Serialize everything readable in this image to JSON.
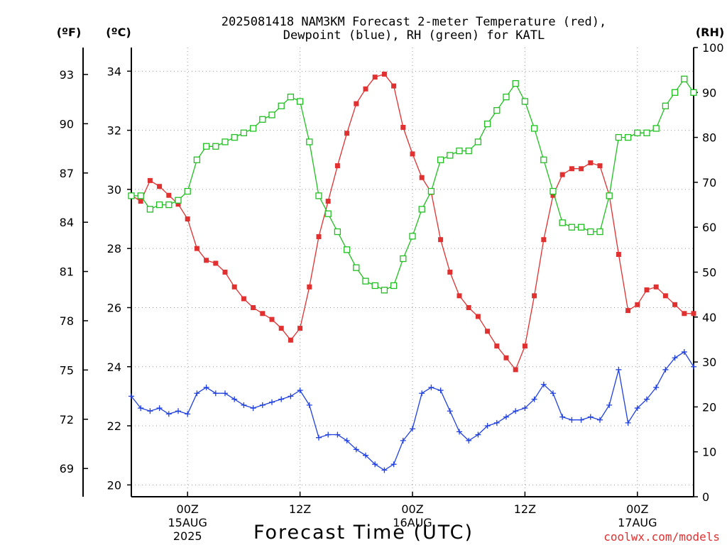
{
  "chart_data": {
    "type": "line",
    "title_line1": "2025081418 NAM3KM Forecast 2-meter Temperature (red),",
    "title_line2": "Dewpoint (blue), RH (green) for KATL",
    "xlabel": "Forecast Time (UTC)",
    "credit": "coolwx.com/models",
    "left_unit_f": "(ºF)",
    "left_unit_c": "(ºC)",
    "right_unit": "(RH)",
    "x_range_hours": [
      18,
      78
    ],
    "y_celsius_range": [
      19.6,
      34.8
    ],
    "y_rh_range": [
      0,
      100
    ],
    "grid": true,
    "fahrenheit_ticks": [
      69,
      72,
      75,
      78,
      81,
      84,
      87,
      90,
      93
    ],
    "celsius_ticks": [
      20,
      22,
      24,
      26,
      28,
      30,
      32,
      34
    ],
    "rh_ticks": [
      0,
      10,
      20,
      30,
      40,
      50,
      60,
      70,
      80,
      90,
      100
    ],
    "x_ticks": [
      {
        "hour": 24,
        "label": "00Z",
        "date": "15AUG",
        "year": "2025"
      },
      {
        "hour": 36,
        "label": "12Z",
        "date": "",
        "year": ""
      },
      {
        "hour": 48,
        "label": "00Z",
        "date": "16AUG",
        "year": ""
      },
      {
        "hour": 60,
        "label": "12Z",
        "date": "",
        "year": ""
      },
      {
        "hour": 72,
        "label": "00Z",
        "date": "17AUG",
        "year": ""
      }
    ],
    "x_start_hour": 18,
    "x_step_hours": 1,
    "series": [
      {
        "name": "Temperature",
        "unit": "C",
        "color": "#e03030",
        "marker": "filled-square",
        "values": [
          29.8,
          29.6,
          30.3,
          30.1,
          29.8,
          29.5,
          29.0,
          28.0,
          27.6,
          27.5,
          27.2,
          26.7,
          26.3,
          26.0,
          25.8,
          25.6,
          25.3,
          24.9,
          25.3,
          26.7,
          28.4,
          29.6,
          30.8,
          31.9,
          32.9,
          33.4,
          33.8,
          33.9,
          33.5,
          32.1,
          31.2,
          30.4,
          29.9,
          28.3,
          27.2,
          26.4,
          26.0,
          25.7,
          25.2,
          24.7,
          24.3,
          23.9,
          24.7,
          26.4,
          28.3,
          29.8,
          30.5,
          30.7,
          30.7,
          30.9,
          30.8,
          29.8,
          27.8,
          25.9,
          26.1,
          26.6,
          26.7,
          26.4,
          26.1,
          25.8,
          25.8
        ]
      },
      {
        "name": "Dewpoint",
        "unit": "C",
        "color": "#2040e0",
        "marker": "plus",
        "values": [
          23.0,
          22.6,
          22.5,
          22.6,
          22.4,
          22.5,
          22.4,
          23.1,
          23.3,
          23.1,
          23.1,
          22.9,
          22.7,
          22.6,
          22.7,
          22.8,
          22.9,
          23.0,
          23.2,
          22.7,
          21.6,
          21.7,
          21.7,
          21.5,
          21.2,
          21.0,
          20.7,
          20.5,
          20.7,
          21.5,
          21.9,
          23.1,
          23.3,
          23.2,
          22.5,
          21.8,
          21.5,
          21.7,
          22.0,
          22.1,
          22.3,
          22.5,
          22.6,
          22.9,
          23.4,
          23.1,
          22.3,
          22.2,
          22.2,
          22.3,
          22.2,
          22.7,
          23.9,
          22.1,
          22.6,
          22.9,
          23.3,
          23.9,
          24.3,
          24.5,
          24.0
        ]
      },
      {
        "name": "RH",
        "unit": "%",
        "color": "#20c020",
        "marker": "open-square",
        "values": [
          67,
          67,
          64,
          65,
          65,
          66,
          68,
          75,
          78,
          78,
          79,
          80,
          81,
          82,
          84,
          85,
          87,
          89,
          88,
          79,
          67,
          63,
          59,
          55,
          51,
          48,
          47,
          46,
          47,
          53,
          58,
          64,
          68,
          75,
          76,
          77,
          77,
          79,
          83,
          86,
          89,
          92,
          88,
          82,
          75,
          68,
          61,
          60,
          60,
          59,
          59,
          67,
          80,
          80,
          81,
          81,
          82,
          87,
          90,
          93,
          90
        ]
      }
    ]
  }
}
